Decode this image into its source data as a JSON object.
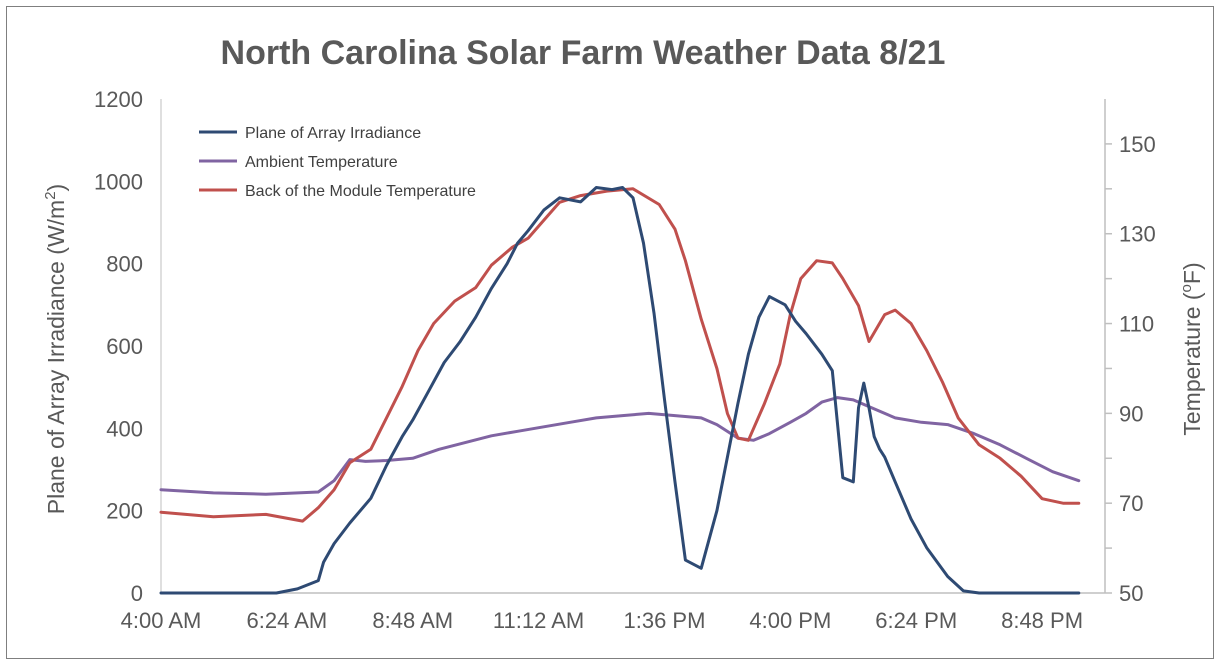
{
  "chart_data": {
    "type": "line",
    "title": "North Carolina Solar Farm Weather Data 8/21",
    "ylabel": "Plane of Array Irradiance (W/m²)",
    "y2label": "Temperature (ºF)",
    "ylabel_main": "Plane of Array Irradiance (W/m",
    "ylabel_sup": "2",
    "ylabel_end": ")",
    "y2label_main": "Temperature (",
    "y2label_sup": "o",
    "y2label_end": "F)",
    "x_ticks": [
      "4:00 AM",
      "6:24 AM",
      "8:48 AM",
      "11:12 AM",
      "1:36 PM",
      "4:00 PM",
      "6:24 PM",
      "8:48 PM"
    ],
    "x_tick_hours": [
      4.0,
      6.4,
      8.8,
      11.2,
      13.6,
      16.0,
      18.4,
      20.8
    ],
    "xlim": [
      4.0,
      22.0
    ],
    "y_ticks": [
      "0",
      "200",
      "400",
      "600",
      "800",
      "1000",
      "1200"
    ],
    "ylim": [
      0,
      1200
    ],
    "y2_ticks": [
      "50",
      "70",
      "90",
      "110",
      "130",
      "150"
    ],
    "y2lim": [
      50,
      160
    ],
    "legend_position": "top-left",
    "series": [
      {
        "name": "Plane of Array Irradiance",
        "axis": "left",
        "color": "#2e4a73",
        "x": [
          4.0,
          6.2,
          6.6,
          7.0,
          7.1,
          7.3,
          7.6,
          8.0,
          8.3,
          8.6,
          8.8,
          9.1,
          9.4,
          9.7,
          10.0,
          10.3,
          10.6,
          10.8,
          11.0,
          11.3,
          11.6,
          12.0,
          12.3,
          12.6,
          12.8,
          13.0,
          13.2,
          13.4,
          13.6,
          13.8,
          14.0,
          14.3,
          14.6,
          15.0,
          15.2,
          15.4,
          15.6,
          15.9,
          16.1,
          16.3,
          16.6,
          16.8,
          17.0,
          17.2,
          17.3,
          17.4,
          17.5,
          17.6,
          17.7,
          17.8,
          18.0,
          18.3,
          18.6,
          19.0,
          19.3,
          19.6,
          19.8,
          20.0,
          20.5,
          21.0,
          21.5
        ],
        "y": [
          0,
          0,
          10,
          30,
          75,
          120,
          170,
          230,
          310,
          380,
          420,
          490,
          560,
          610,
          670,
          740,
          800,
          850,
          880,
          930,
          960,
          950,
          985,
          980,
          985,
          960,
          850,
          680,
          470,
          270,
          80,
          60,
          200,
          460,
          580,
          670,
          720,
          700,
          660,
          630,
          580,
          540,
          280,
          270,
          450,
          510,
          450,
          380,
          350,
          330,
          270,
          180,
          110,
          40,
          5,
          0,
          0,
          0,
          0,
          0,
          0
        ]
      },
      {
        "name": "Ambient Temperature",
        "axis": "right",
        "color": "#8064a2",
        "x": [
          4.0,
          5.0,
          6.0,
          7.0,
          7.3,
          7.6,
          7.9,
          8.3,
          8.8,
          9.3,
          9.8,
          10.3,
          10.8,
          11.3,
          11.8,
          12.3,
          12.8,
          13.3,
          13.8,
          14.3,
          14.6,
          15.0,
          15.3,
          15.6,
          16.0,
          16.3,
          16.6,
          16.9,
          17.2,
          17.6,
          18.0,
          18.5,
          19.0,
          19.5,
          20.0,
          20.5,
          21.0,
          21.5
        ],
        "y": [
          73.0,
          72.3,
          72.0,
          72.5,
          75.0,
          79.7,
          79.3,
          79.5,
          80.0,
          82.0,
          83.5,
          85.0,
          86.0,
          87.0,
          88.0,
          89.0,
          89.5,
          90.0,
          89.5,
          89.0,
          87.5,
          84.5,
          84.0,
          85.5,
          88.0,
          90.0,
          92.5,
          93.5,
          93.0,
          91.0,
          89.0,
          88.0,
          87.5,
          85.5,
          83.0,
          80.0,
          77.0,
          75.0
        ]
      },
      {
        "name": "Back of the Module Temperature",
        "axis": "right",
        "color": "#c0504d",
        "x": [
          4.0,
          5.0,
          6.0,
          6.7,
          7.0,
          7.3,
          7.6,
          8.0,
          8.3,
          8.6,
          8.9,
          9.2,
          9.6,
          10.0,
          10.3,
          10.7,
          11.0,
          11.3,
          11.6,
          12.0,
          12.5,
          13.0,
          13.5,
          13.8,
          14.0,
          14.3,
          14.6,
          14.8,
          15.0,
          15.2,
          15.5,
          15.8,
          16.0,
          16.2,
          16.5,
          16.8,
          17.0,
          17.3,
          17.5,
          17.8,
          18.0,
          18.3,
          18.6,
          18.9,
          19.2,
          19.6,
          20.0,
          20.4,
          20.8,
          21.2,
          21.5
        ],
        "y": [
          68.0,
          67.0,
          67.5,
          66.0,
          69.0,
          73.0,
          79.0,
          82.0,
          89.0,
          96.0,
          104.0,
          110.0,
          115.0,
          118.0,
          123.0,
          127.0,
          129.0,
          133.0,
          137.0,
          138.5,
          139.5,
          140.0,
          136.5,
          131.0,
          124.0,
          111.0,
          100.0,
          90.0,
          84.5,
          84.0,
          92.0,
          101.0,
          112.0,
          120.0,
          124.0,
          123.5,
          120.0,
          114.0,
          106.0,
          112.0,
          113.0,
          110.0,
          104.0,
          97.0,
          89.0,
          83.0,
          80.0,
          76.0,
          71.0,
          70.0,
          70.0
        ]
      }
    ]
  }
}
